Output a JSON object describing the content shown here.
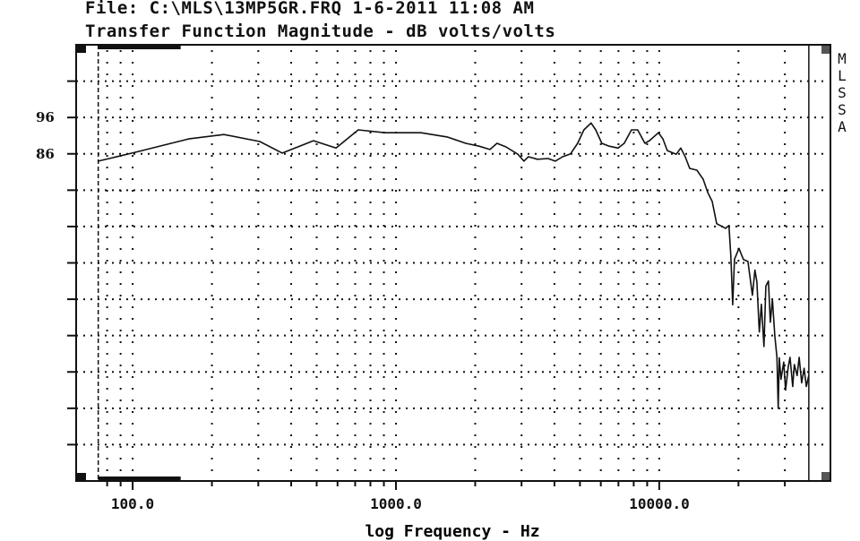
{
  "header": {
    "file_line": "File: C:\\MLS\\13MP5GR.FRQ 1-6-2011 11:08 AM",
    "title_line": "Transfer Function Magnitude - dB volts/volts"
  },
  "brand": "MLSSA",
  "chart_data": {
    "type": "line",
    "title": "Transfer Function Magnitude - dB volts/volts",
    "xlabel": "log Frequency - Hz",
    "ylabel": "dB volts/volts",
    "xscale": "log",
    "xlim": [
      61,
      44700
    ],
    "ylim": [
      -4,
      116
    ],
    "grid": true,
    "y_gridlines": [
      6,
      16,
      26,
      36,
      46,
      56,
      66,
      76,
      86,
      96,
      106
    ],
    "y_tick_labels": [
      {
        "value": 96,
        "label": "96"
      },
      {
        "value": 86,
        "label": "86"
      }
    ],
    "x_gridlines": [
      80,
      90,
      100,
      200,
      300,
      400,
      500,
      600,
      700,
      800,
      900,
      1000,
      2000,
      3000,
      4000,
      5000,
      6000,
      7000,
      8000,
      9000,
      10000,
      20000,
      30000
    ],
    "x_tick_labels": [
      {
        "value": 100,
        "label": "100.0"
      },
      {
        "value": 1000,
        "label": "1000.0"
      },
      {
        "value": 10000,
        "label": "10000.0"
      }
    ],
    "markers": {
      "start_hz": 74,
      "end_hz": 37000
    },
    "series": [
      {
        "name": "Transfer Function Magnitude",
        "points": [
          [
            74,
            84.0
          ],
          [
            102,
            86.4
          ],
          [
            163,
            90.1
          ],
          [
            222,
            91.3
          ],
          [
            304,
            89.4
          ],
          [
            370,
            86.2
          ],
          [
            486,
            89.6
          ],
          [
            592,
            87.6
          ],
          [
            719,
            92.6
          ],
          [
            910,
            91.8
          ],
          [
            1245,
            91.8
          ],
          [
            1574,
            90.6
          ],
          [
            1841,
            88.9
          ],
          [
            2070,
            88.1
          ],
          [
            2275,
            87.2
          ],
          [
            2420,
            88.9
          ],
          [
            2618,
            87.9
          ],
          [
            2904,
            85.9
          ],
          [
            3062,
            84.0
          ],
          [
            3186,
            85.2
          ],
          [
            3446,
            84.5
          ],
          [
            3786,
            84.7
          ],
          [
            4028,
            84.0
          ],
          [
            4295,
            85.2
          ],
          [
            4603,
            86.0
          ],
          [
            4898,
            88.9
          ],
          [
            5176,
            92.6
          ],
          [
            5508,
            94.5
          ],
          [
            5741,
            92.6
          ],
          [
            6053,
            88.9
          ],
          [
            6457,
            88.1
          ],
          [
            6982,
            87.6
          ],
          [
            7362,
            88.9
          ],
          [
            7845,
            92.6
          ],
          [
            8283,
            92.6
          ],
          [
            8826,
            88.9
          ],
          [
            9178,
            89.6
          ],
          [
            9931,
            91.8
          ],
          [
            10325,
            90.1
          ],
          [
            10735,
            86.9
          ],
          [
            11610,
            85.9
          ],
          [
            12070,
            87.6
          ],
          [
            12550,
            85.2
          ],
          [
            13050,
            82.0
          ],
          [
            13900,
            81.5
          ],
          [
            14690,
            79.0
          ],
          [
            15280,
            75.4
          ],
          [
            15890,
            72.9
          ],
          [
            16520,
            66.8
          ],
          [
            17870,
            65.5
          ],
          [
            18400,
            66.3
          ],
          [
            18700,
            58
          ],
          [
            19010,
            44.5
          ],
          [
            19320,
            57
          ],
          [
            20090,
            60
          ],
          [
            20890,
            56.9
          ],
          [
            21730,
            56.4
          ],
          [
            22590,
            47.1
          ],
          [
            23100,
            54
          ],
          [
            23490,
            50.8
          ],
          [
            24000,
            37
          ],
          [
            24430,
            44.6
          ],
          [
            25000,
            33
          ],
          [
            25410,
            49.6
          ],
          [
            26000,
            51
          ],
          [
            26420,
            39.7
          ],
          [
            26900,
            46
          ],
          [
            27480,
            36
          ],
          [
            28000,
            30
          ],
          [
            28300,
            16
          ],
          [
            28570,
            29.9
          ],
          [
            29000,
            24
          ],
          [
            29710,
            28.7
          ],
          [
            30200,
            21
          ],
          [
            30900,
            27.4
          ],
          [
            31400,
            30
          ],
          [
            32130,
            22
          ],
          [
            32600,
            28
          ],
          [
            33410,
            25
          ],
          [
            34000,
            30
          ],
          [
            34750,
            23
          ],
          [
            35500,
            27
          ],
          [
            36200,
            22
          ],
          [
            36980,
            25
          ]
        ]
      }
    ]
  }
}
